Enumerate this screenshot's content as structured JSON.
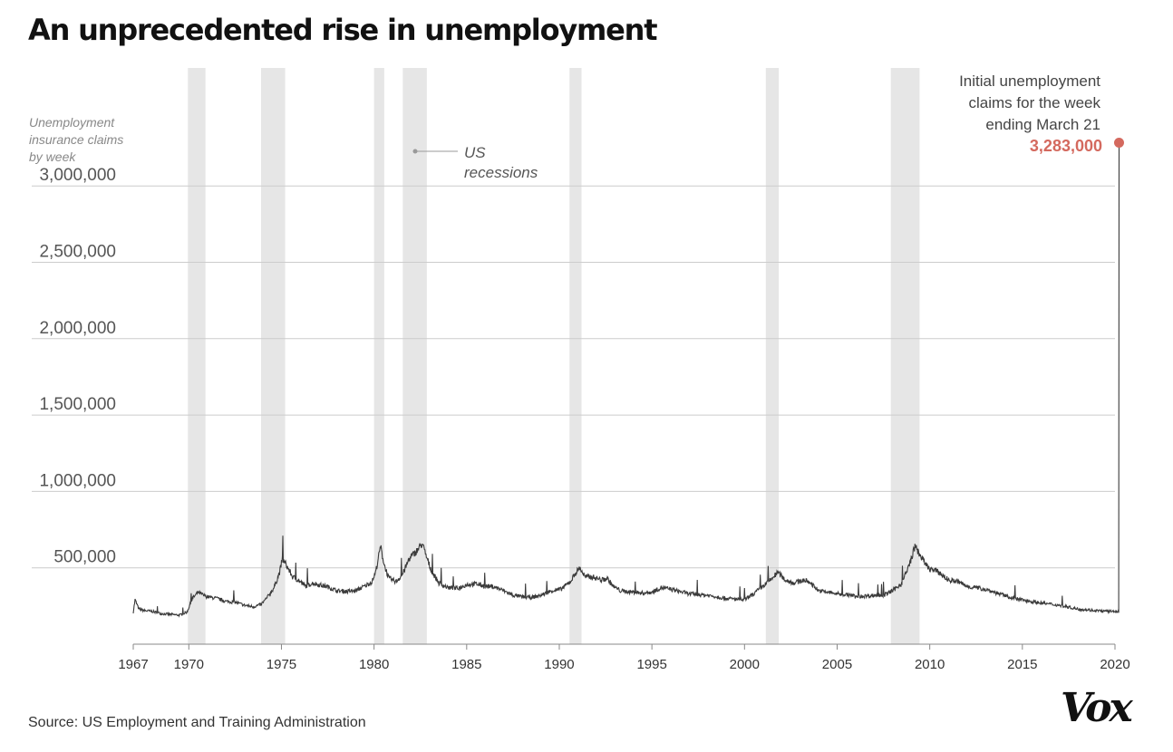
{
  "title": "An unprecedented rise in unemployment",
  "source": "Source: US Employment and Training Administration",
  "logo": "Vox",
  "chart_data": {
    "type": "line",
    "title": "An unprecedented rise in unemployment",
    "ylabel_lines": [
      "Unemployment",
      "insurance claims",
      "by week"
    ],
    "xlim": [
      1967,
      2020
    ],
    "ylim": [
      0,
      3300000
    ],
    "yticks": [
      500000,
      1000000,
      1500000,
      2000000,
      2500000,
      3000000
    ],
    "ytick_labels": [
      "500,000",
      "1,000,000",
      "1,500,000",
      "2,000,000",
      "2,500,000",
      "3,000,000"
    ],
    "xticks": [
      1967,
      1970,
      1975,
      1980,
      1985,
      1990,
      1995,
      2000,
      2005,
      2010,
      2015,
      2020
    ],
    "grid": "horizontal",
    "recession_label_lines": [
      "US",
      "recessions"
    ],
    "recessions": [
      [
        1969.95,
        1970.9
      ],
      [
        1973.9,
        1975.2
      ],
      [
        1980.0,
        1980.55
      ],
      [
        1981.55,
        1982.85
      ],
      [
        1990.55,
        1991.2
      ],
      [
        2001.15,
        2001.85
      ],
      [
        2007.9,
        2009.45
      ]
    ],
    "series": [
      {
        "points": [
          [
            1967.0,
            210000
          ],
          [
            1967.1,
            290000
          ],
          [
            1967.3,
            230000
          ],
          [
            1967.6,
            220000
          ],
          [
            1968.0,
            215000
          ],
          [
            1968.5,
            200000
          ],
          [
            1969.0,
            195000
          ],
          [
            1969.5,
            190000
          ],
          [
            1969.9,
            210000
          ],
          [
            1970.2,
            300000
          ],
          [
            1970.5,
            340000
          ],
          [
            1970.8,
            320000
          ],
          [
            1971.0,
            310000
          ],
          [
            1971.5,
            300000
          ],
          [
            1972.0,
            280000
          ],
          [
            1972.5,
            275000
          ],
          [
            1973.0,
            255000
          ],
          [
            1973.5,
            245000
          ],
          [
            1973.9,
            260000
          ],
          [
            1974.2,
            300000
          ],
          [
            1974.6,
            370000
          ],
          [
            1974.9,
            470000
          ],
          [
            1975.05,
            560000
          ],
          [
            1975.3,
            510000
          ],
          [
            1975.6,
            440000
          ],
          [
            1975.9,
            420000
          ],
          [
            1976.3,
            380000
          ],
          [
            1976.7,
            400000
          ],
          [
            1977.0,
            390000
          ],
          [
            1977.5,
            375000
          ],
          [
            1978.0,
            350000
          ],
          [
            1978.5,
            345000
          ],
          [
            1979.0,
            350000
          ],
          [
            1979.5,
            380000
          ],
          [
            1979.9,
            410000
          ],
          [
            1980.1,
            480000
          ],
          [
            1980.35,
            640000
          ],
          [
            1980.55,
            520000
          ],
          [
            1980.8,
            430000
          ],
          [
            1981.2,
            410000
          ],
          [
            1981.55,
            460000
          ],
          [
            1981.9,
            560000
          ],
          [
            1982.3,
            610000
          ],
          [
            1982.6,
            660000
          ],
          [
            1982.8,
            580000
          ],
          [
            1983.1,
            480000
          ],
          [
            1983.5,
            400000
          ],
          [
            1984.0,
            370000
          ],
          [
            1984.5,
            365000
          ],
          [
            1985.0,
            390000
          ],
          [
            1985.5,
            395000
          ],
          [
            1986.0,
            380000
          ],
          [
            1986.5,
            375000
          ],
          [
            1987.0,
            350000
          ],
          [
            1987.5,
            320000
          ],
          [
            1988.0,
            310000
          ],
          [
            1988.5,
            305000
          ],
          [
            1989.0,
            320000
          ],
          [
            1989.6,
            350000
          ],
          [
            1990.1,
            360000
          ],
          [
            1990.6,
            410000
          ],
          [
            1990.9,
            470000
          ],
          [
            1991.1,
            500000
          ],
          [
            1991.4,
            440000
          ],
          [
            1991.8,
            440000
          ],
          [
            1992.3,
            420000
          ],
          [
            1992.6,
            430000
          ],
          [
            1992.9,
            380000
          ],
          [
            1993.3,
            350000
          ],
          [
            1994.0,
            340000
          ],
          [
            1994.5,
            335000
          ],
          [
            1995.0,
            340000
          ],
          [
            1995.5,
            370000
          ],
          [
            1996.0,
            360000
          ],
          [
            1996.5,
            345000
          ],
          [
            1997.0,
            330000
          ],
          [
            1998.0,
            320000
          ],
          [
            1999.0,
            300000
          ],
          [
            2000.0,
            290000
          ],
          [
            2000.5,
            330000
          ],
          [
            2001.0,
            380000
          ],
          [
            2001.4,
            420000
          ],
          [
            2001.8,
            470000
          ],
          [
            2002.2,
            420000
          ],
          [
            2002.7,
            400000
          ],
          [
            2003.2,
            420000
          ],
          [
            2003.6,
            400000
          ],
          [
            2004.0,
            350000
          ],
          [
            2005.0,
            330000
          ],
          [
            2005.8,
            320000
          ],
          [
            2006.0,
            310000
          ],
          [
            2007.0,
            320000
          ],
          [
            2007.5,
            320000
          ],
          [
            2008.0,
            350000
          ],
          [
            2008.5,
            400000
          ],
          [
            2008.9,
            520000
          ],
          [
            2009.2,
            640000
          ],
          [
            2009.5,
            580000
          ],
          [
            2009.9,
            500000
          ],
          [
            2010.5,
            470000
          ],
          [
            2011.0,
            420000
          ],
          [
            2011.5,
            410000
          ],
          [
            2012.0,
            380000
          ],
          [
            2012.5,
            370000
          ],
          [
            2013.0,
            360000
          ],
          [
            2013.5,
            340000
          ],
          [
            2014.0,
            320000
          ],
          [
            2014.5,
            300000
          ],
          [
            2015.0,
            290000
          ],
          [
            2016.0,
            270000
          ],
          [
            2017.0,
            255000
          ],
          [
            2018.0,
            230000
          ],
          [
            2019.0,
            220000
          ],
          [
            2019.5,
            215000
          ],
          [
            2019.95,
            215000
          ],
          [
            2020.2,
            215000
          ],
          [
            2020.22,
            3283000
          ]
        ]
      }
    ],
    "highlight": {
      "x": 2020.22,
      "value": 3283000,
      "value_label": "3,283,000",
      "label_lines": [
        "Initial unemployment",
        "claims for the week",
        "ending March 21"
      ],
      "color": "#d4695e"
    },
    "colors": {
      "line": "#3a3a3a",
      "recession": "#e6e6e6",
      "grid": "#cccccc",
      "axis": "#888888"
    }
  }
}
